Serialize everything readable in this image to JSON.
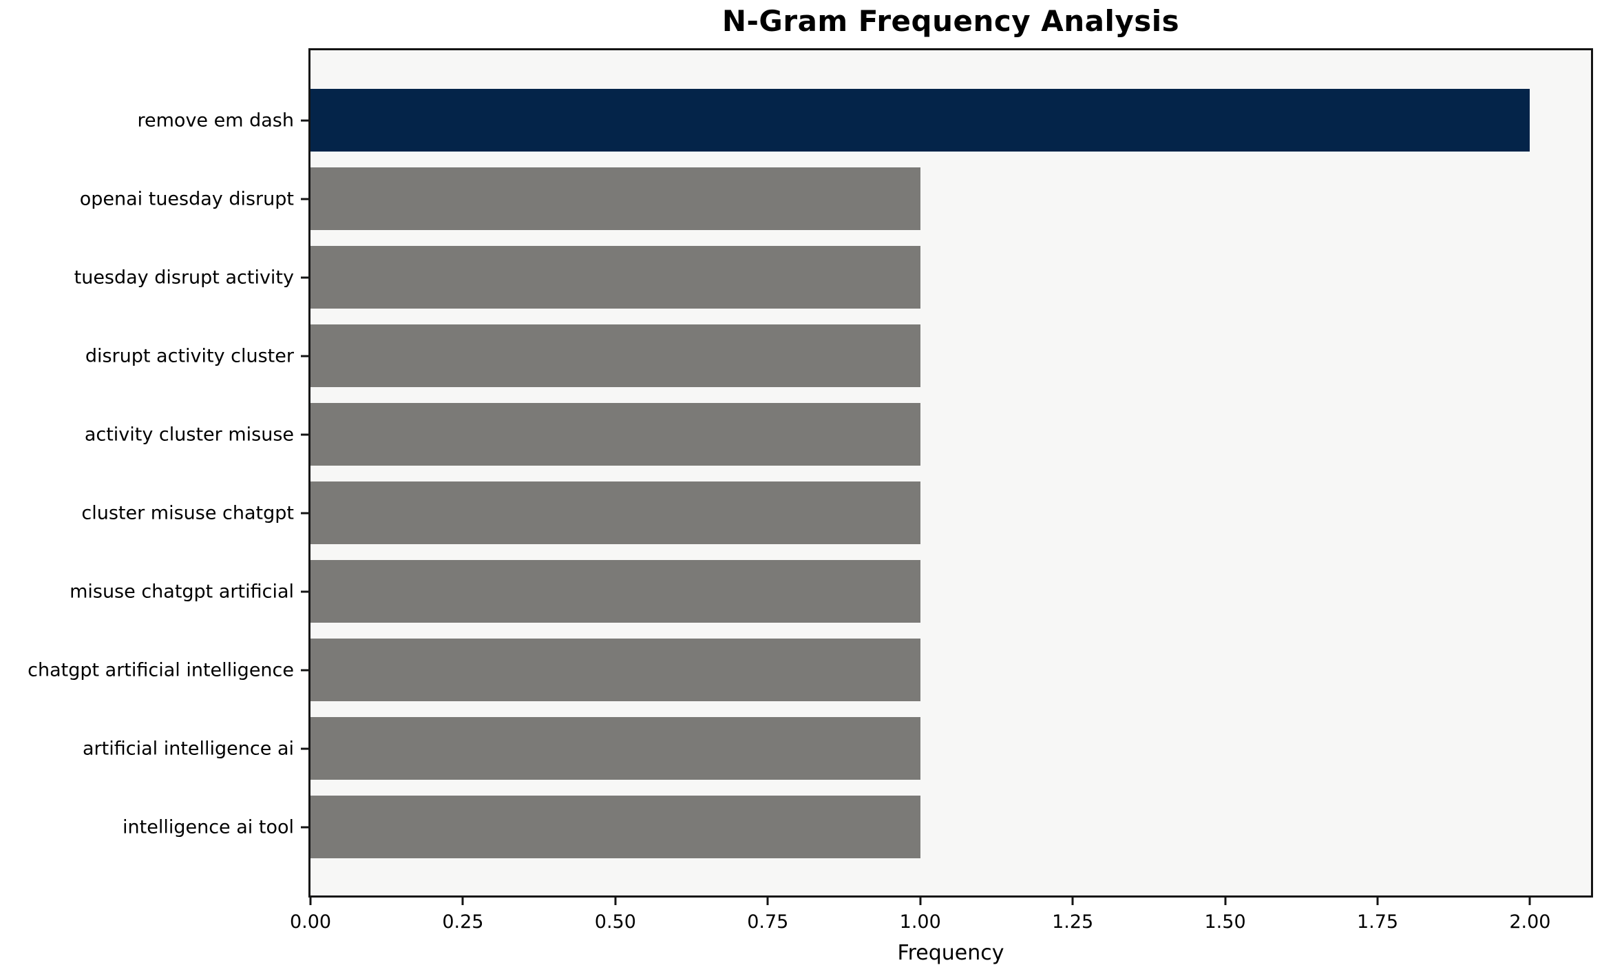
{
  "chart_data": {
    "type": "bar",
    "orientation": "horizontal",
    "title": "N-Gram Frequency Analysis",
    "xlabel": "Frequency",
    "ylabel": "",
    "categories": [
      "remove em dash",
      "openai tuesday disrupt",
      "tuesday disrupt activity",
      "disrupt activity cluster",
      "activity cluster misuse",
      "cluster misuse chatgpt",
      "misuse chatgpt artificial",
      "chatgpt artificial intelligence",
      "artificial intelligence ai",
      "intelligence ai tool"
    ],
    "values": [
      2,
      1,
      1,
      1,
      1,
      1,
      1,
      1,
      1,
      1
    ],
    "xlim": [
      0,
      2.1
    ],
    "xticks": [
      "0.00",
      "0.25",
      "0.50",
      "0.75",
      "1.00",
      "1.25",
      "1.50",
      "1.75",
      "2.00"
    ],
    "xtick_values": [
      0,
      0.25,
      0.5,
      0.75,
      1.0,
      1.25,
      1.5,
      1.75,
      2.0
    ],
    "grid": false,
    "legend": null,
    "highlight_index": 0,
    "colors": {
      "highlight_bar": "#042449",
      "default_bar": "#7b7a77",
      "plot_background": "#f7f7f6",
      "figure_background": "#ffffff",
      "axis": "#141414",
      "text": "#000000"
    }
  }
}
